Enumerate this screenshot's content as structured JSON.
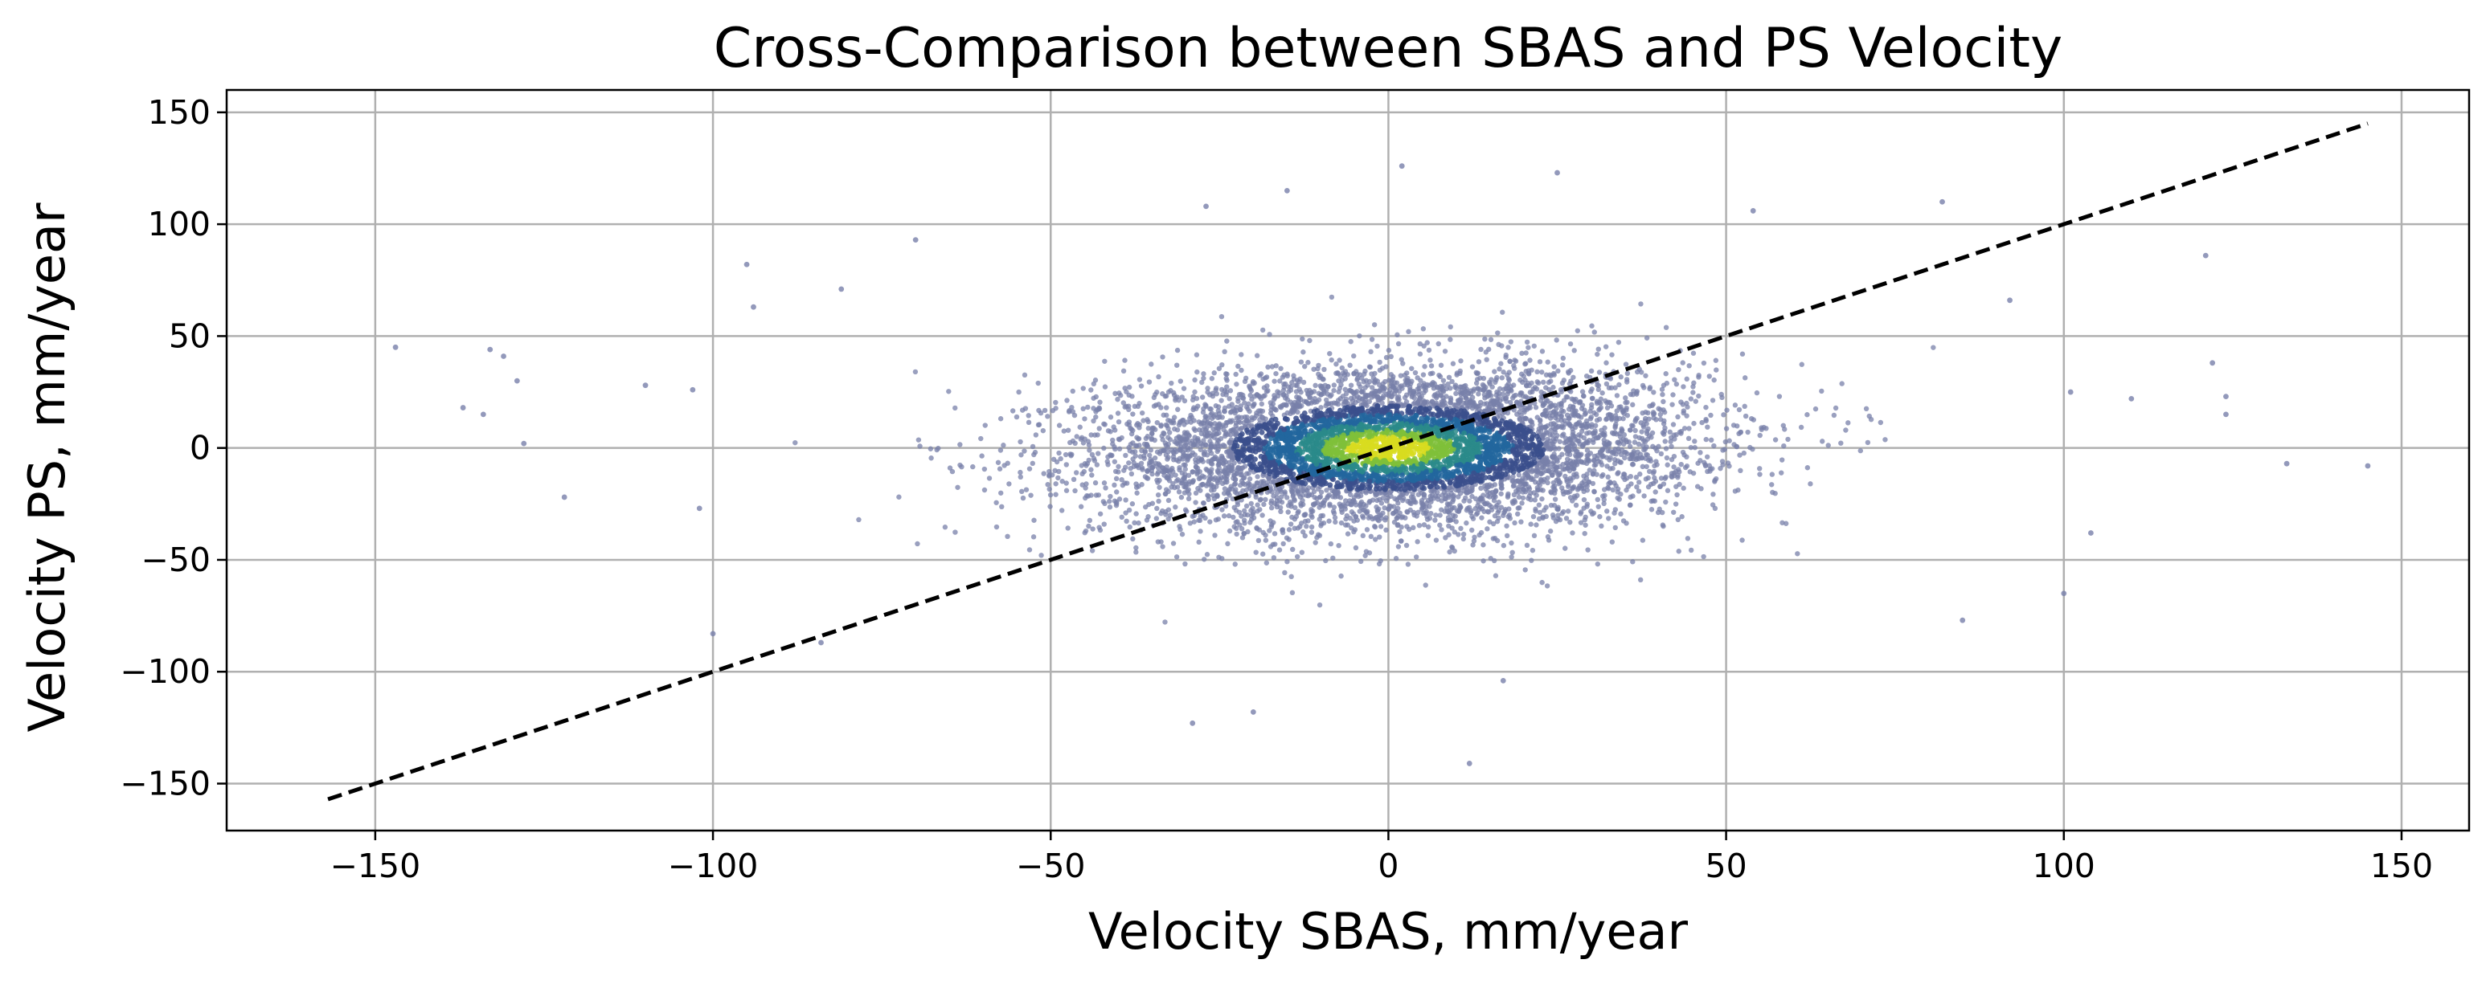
{
  "chart_data": {
    "type": "scatter",
    "title": "Cross-Comparison between SBAS and PS Velocity",
    "xlabel": "Velocity SBAS, mm/year",
    "ylabel": "Velocity PS, mm/year",
    "xlim": [
      -172,
      160
    ],
    "ylim": [
      -171,
      160
    ],
    "xticks": [
      -150,
      -100,
      -50,
      0,
      50,
      100,
      150
    ],
    "yticks": [
      -150,
      -100,
      -50,
      0,
      50,
      100,
      150
    ],
    "xtick_labels": [
      "−150",
      "−100",
      "−50",
      "0",
      "50",
      "100",
      "150"
    ],
    "ytick_labels": [
      "−150",
      "−100",
      "−50",
      "0",
      "50",
      "100",
      "150"
    ],
    "grid": true,
    "colormap": [
      "#3b4f8c",
      "#22669e",
      "#2a8a8a",
      "#7fbf3a",
      "#d8dc20"
    ],
    "point_color_sparse": "#7880aa",
    "reference_line": {
      "style": "dashed",
      "color": "#000000",
      "x": [
        -157,
        145
      ],
      "y": [
        -157,
        145
      ]
    },
    "series": [
      {
        "distribution": "density cloud centered at (0, 0); x spread about 22 mm/year, y spread about 18 mm/year; densest core between x -20 and 25",
        "x_range": [
          -147,
          145
        ],
        "y_range": [
          -141,
          127
        ]
      }
    ],
    "outliers": [
      {
        "x": -147,
        "y": 45
      },
      {
        "x": -137,
        "y": 18
      },
      {
        "x": -134,
        "y": 15
      },
      {
        "x": -133,
        "y": 44
      },
      {
        "x": -131,
        "y": 41
      },
      {
        "x": -129,
        "y": 30
      },
      {
        "x": -128,
        "y": 2
      },
      {
        "x": -122,
        "y": -22
      },
      {
        "x": -110,
        "y": 28
      },
      {
        "x": -103,
        "y": 26
      },
      {
        "x": -102,
        "y": -27
      },
      {
        "x": -100,
        "y": -83
      },
      {
        "x": -95,
        "y": 82
      },
      {
        "x": -94,
        "y": 63
      },
      {
        "x": -84,
        "y": -87
      },
      {
        "x": -81,
        "y": 71
      },
      {
        "x": -70,
        "y": 93
      },
      {
        "x": -29,
        "y": -123
      },
      {
        "x": -20,
        "y": -118
      },
      {
        "x": -15,
        "y": 115
      },
      {
        "x": -27,
        "y": 108
      },
      {
        "x": 2,
        "y": 126
      },
      {
        "x": 12,
        "y": -141
      },
      {
        "x": 17,
        "y": -104
      },
      {
        "x": 25,
        "y": 123
      },
      {
        "x": 54,
        "y": 106
      },
      {
        "x": 82,
        "y": 110
      },
      {
        "x": 85,
        "y": -77
      },
      {
        "x": 92,
        "y": 66
      },
      {
        "x": 100,
        "y": -65
      },
      {
        "x": 101,
        "y": 25
      },
      {
        "x": 104,
        "y": -38
      },
      {
        "x": 110,
        "y": 22
      },
      {
        "x": 121,
        "y": 86
      },
      {
        "x": 122,
        "y": 38
      },
      {
        "x": 124,
        "y": 15
      },
      {
        "x": 124,
        "y": 23
      },
      {
        "x": 133,
        "y": -7
      },
      {
        "x": 145,
        "y": -8
      }
    ]
  }
}
